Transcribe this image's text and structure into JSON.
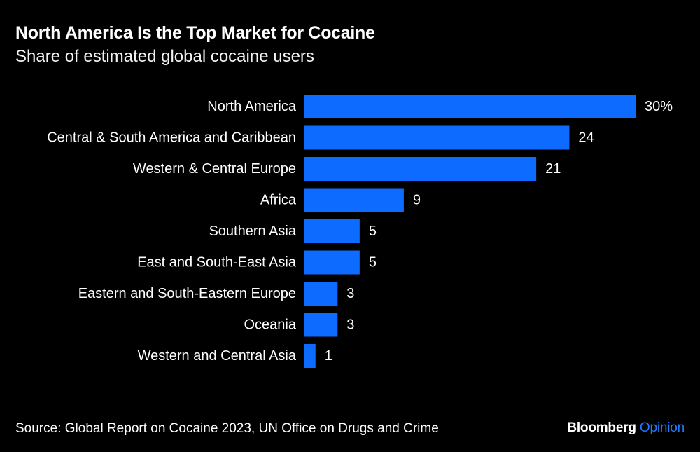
{
  "header": {
    "title": "North America Is the Top Market for Cocaine",
    "subtitle": "Share of estimated global cocaine users"
  },
  "footer": {
    "source": "Source: Global Report on Cocaine 2023, UN Office on Drugs and Crime",
    "brand_name": "Bloomberg",
    "brand_section": "Opinion"
  },
  "colors": {
    "background": "#000000",
    "bar": "#0D6CFF",
    "text": "#ffffff",
    "brand_accent": "#1E7BFF"
  },
  "chart_data": {
    "type": "bar",
    "orientation": "horizontal",
    "title": "North America Is the Top Market for Cocaine",
    "subtitle": "Share of estimated global cocaine users",
    "categories": [
      "North America",
      "Central & South America and Caribbean",
      "Western & Central Europe",
      "Africa",
      "Southern Asia",
      "East and South-East Asia",
      "Eastern and South-Eastern Europe",
      "Oceania",
      "Western and Central Asia"
    ],
    "values": [
      30,
      24,
      21,
      9,
      5,
      5,
      3,
      3,
      1
    ],
    "value_labels": [
      "30%",
      "24",
      "21",
      "9",
      "5",
      "5",
      "3",
      "3",
      "1"
    ],
    "unit": "%",
    "xlim": [
      0,
      30
    ],
    "grid": false,
    "legend": "none"
  }
}
